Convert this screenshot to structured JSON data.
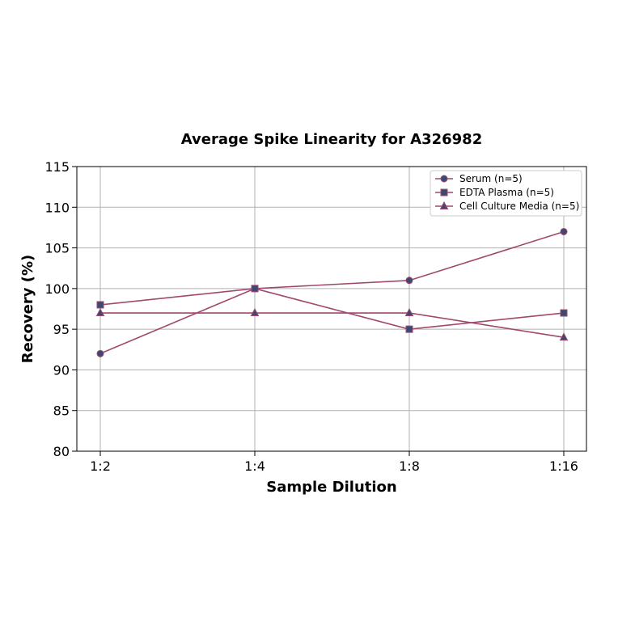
{
  "chart_data": {
    "type": "line",
    "title": "Average Spike Linearity for A326982",
    "xlabel": "Sample Dilution",
    "ylabel": "Recovery (%)",
    "categories": [
      "1:2",
      "1:4",
      "1:8",
      "1:16"
    ],
    "ylim": [
      80,
      115
    ],
    "yticks": [
      80,
      85,
      90,
      95,
      100,
      105,
      110,
      115
    ],
    "grid": true,
    "legend_position": "top-right",
    "line_color": "#a0486e",
    "marker_color": "#3b4a72",
    "series": [
      {
        "name": "Serum (n=5)",
        "marker": "circle",
        "values": [
          92,
          100,
          101,
          107
        ]
      },
      {
        "name": "EDTA Plasma (n=5)",
        "marker": "square",
        "values": [
          98,
          100,
          95,
          97
        ]
      },
      {
        "name": "Cell Culture Media (n=5)",
        "marker": "triangle",
        "values": [
          97,
          97,
          97,
          94
        ]
      }
    ]
  }
}
